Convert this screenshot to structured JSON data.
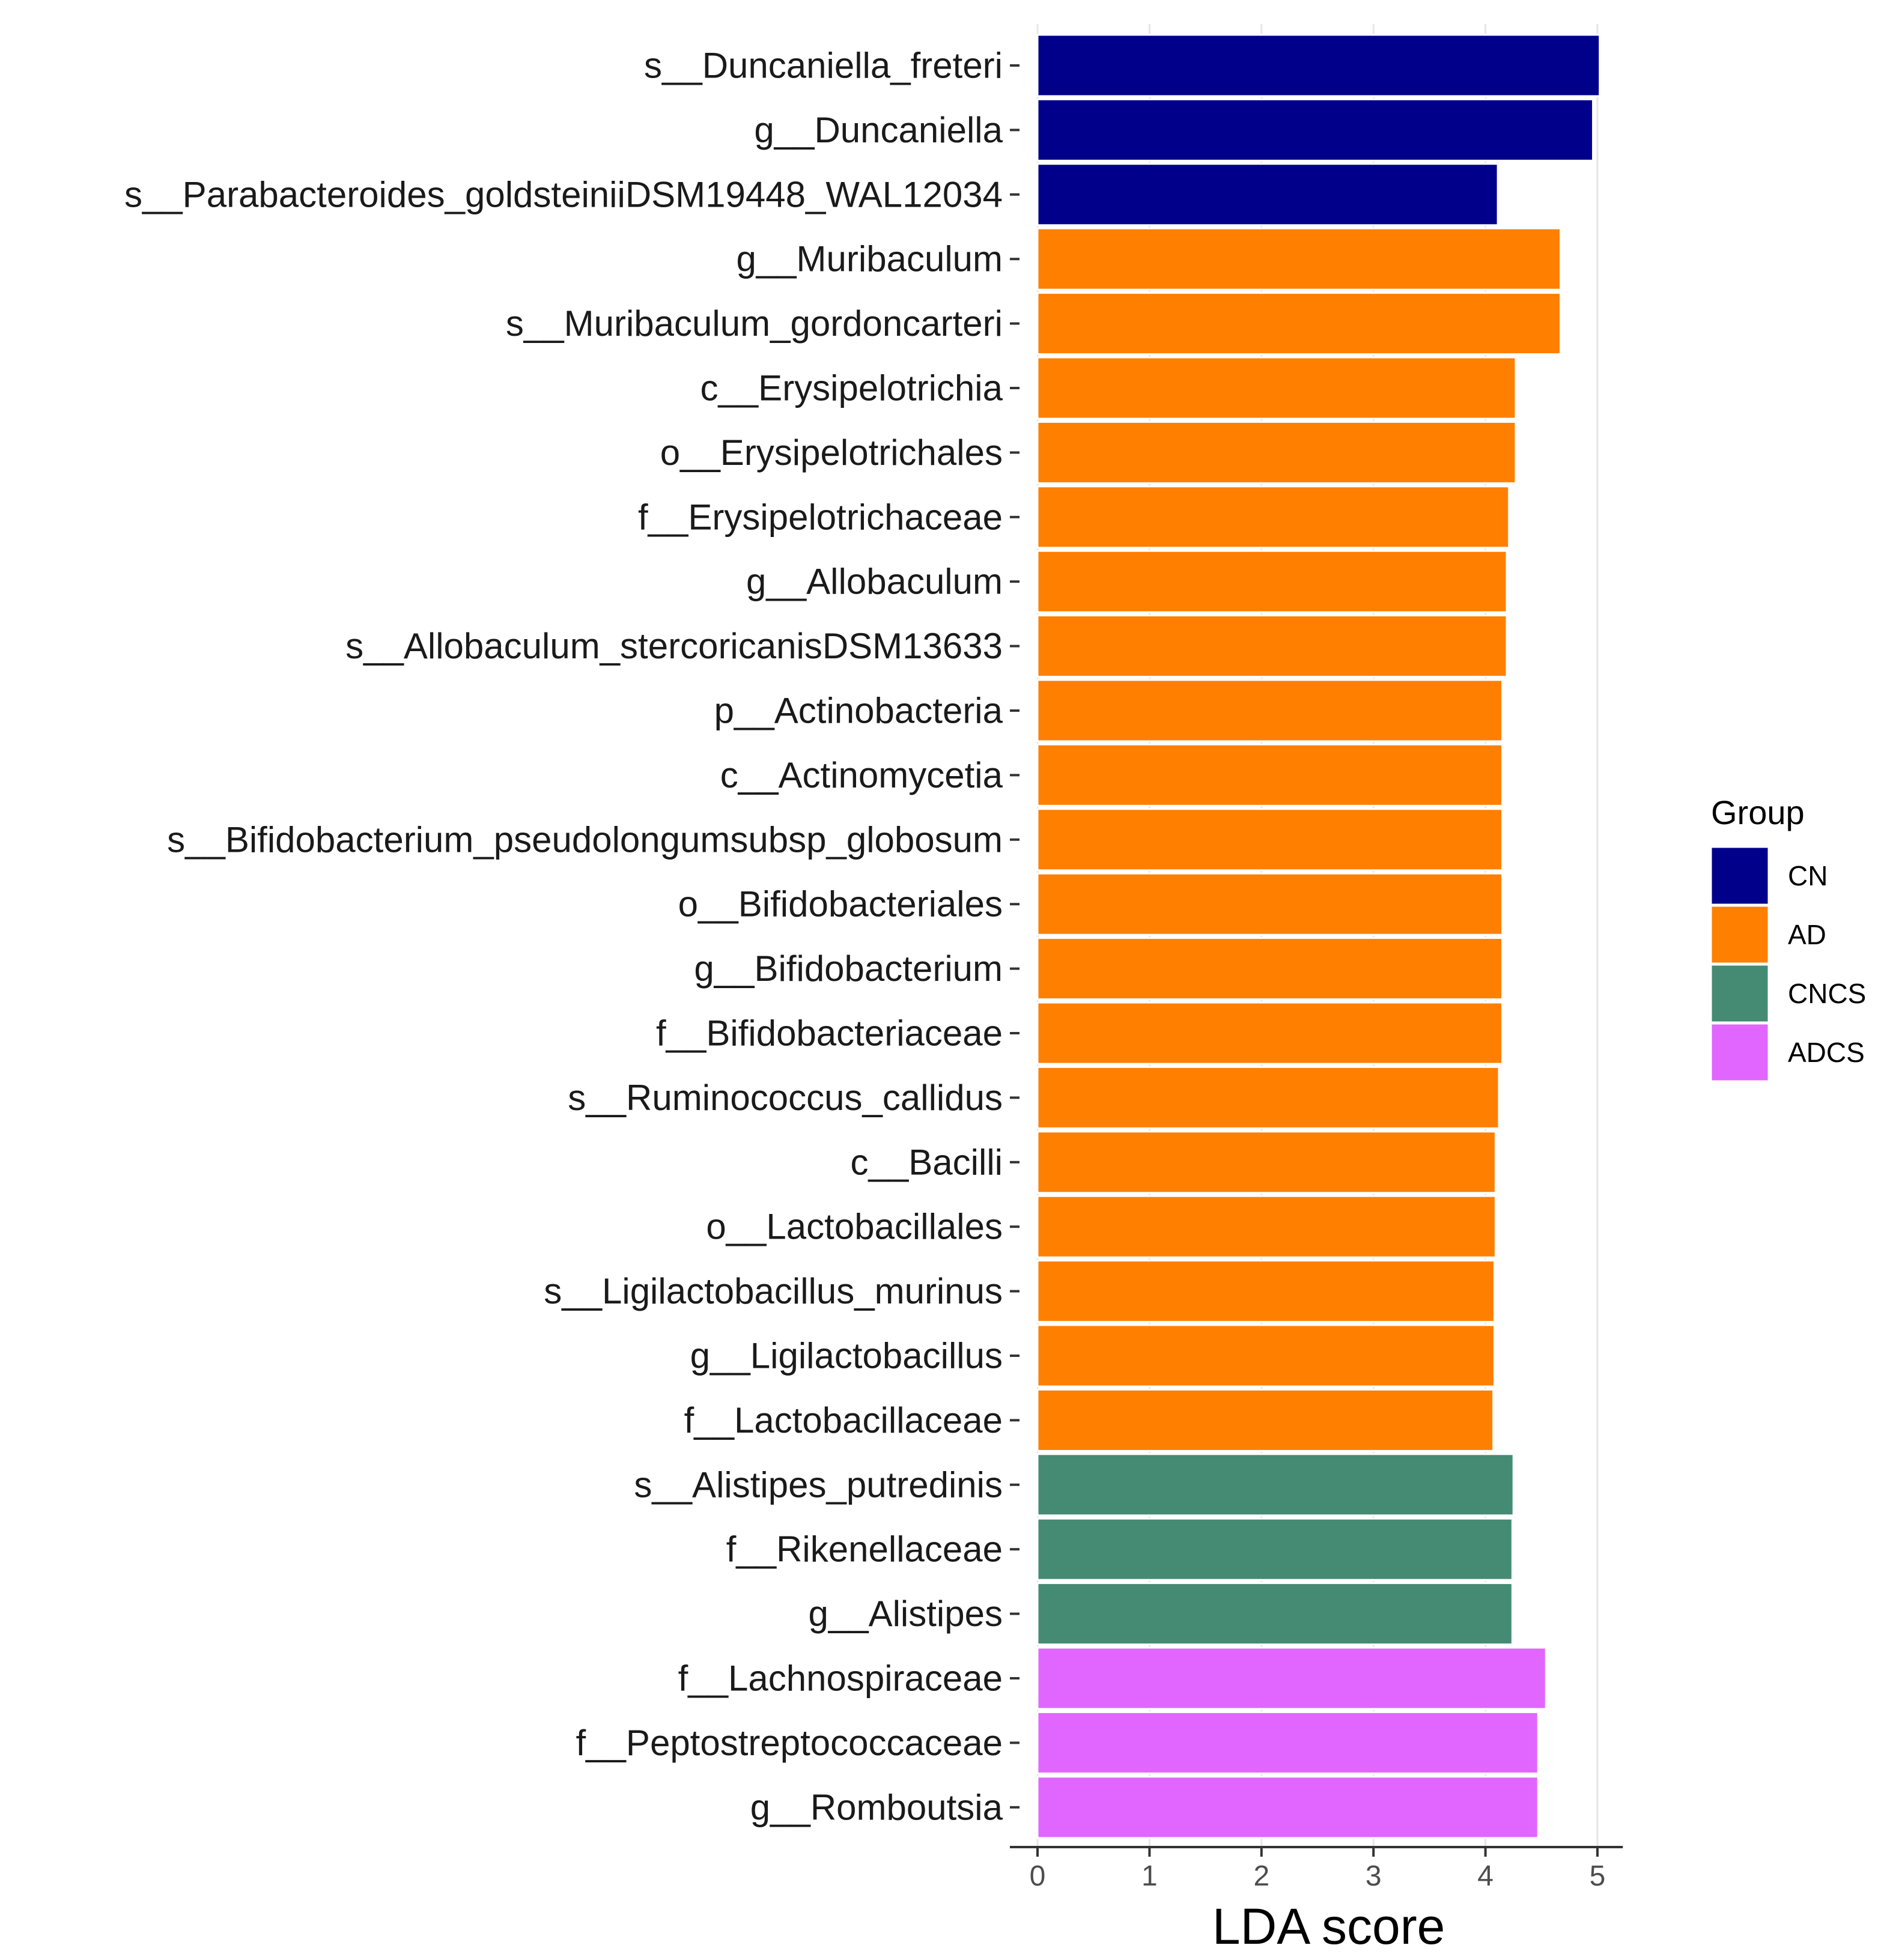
{
  "chart_data": {
    "type": "bar",
    "orientation": "horizontal",
    "title": "",
    "xlabel": "LDA score",
    "ylabel": "",
    "xlim": [
      0,
      5.2
    ],
    "xticks": [
      0,
      1,
      2,
      3,
      4,
      5
    ],
    "grid": "vertical major gridlines",
    "legend": {
      "title": "Group",
      "position": "right",
      "entries": [
        {
          "label": "CN",
          "color": "#00008B"
        },
        {
          "label": "AD",
          "color": "#FF7F00"
        },
        {
          "label": "CNCS",
          "color": "#458B74"
        },
        {
          "label": "ADCS",
          "color": "#E066FF"
        }
      ]
    },
    "categories": [
      "s__Duncaniella_freteri",
      "g__Duncaniella",
      "s__Parabacteroides_goldsteiniiDSM19448_WAL12034",
      "g__Muribaculum",
      "s__Muribaculum_gordoncarteri",
      "c__Erysipelotrichia",
      "o__Erysipelotrichales",
      "f__Erysipelotrichaceae",
      "g__Allobaculum",
      "s__Allobaculum_stercoricanisDSM13633",
      "p__Actinobacteria",
      "c__Actinomycetia",
      "s__Bifidobacterium_pseudolongumsubsp_globosum",
      "o__Bifidobacteriales",
      "g__Bifidobacterium",
      "f__Bifidobacteriaceae",
      "s__Ruminococcus_callidus",
      "c__Bacilli",
      "o__Lactobacillales",
      "s__Ligilactobacillus_murinus",
      "g__Ligilactobacillus",
      "f__Lactobacillaceae",
      "s__Alistipes_putredinis",
      "f__Rikenellaceae",
      "g__Alistipes",
      "f__Lachnospiraceae",
      "f__Peptostreptococcaceae",
      "g__Romboutsia"
    ],
    "values": [
      5.02,
      4.96,
      4.11,
      4.67,
      4.67,
      4.27,
      4.27,
      4.21,
      4.19,
      4.19,
      4.15,
      4.15,
      4.15,
      4.15,
      4.15,
      4.15,
      4.12,
      4.09,
      4.09,
      4.08,
      4.08,
      4.07,
      4.25,
      4.24,
      4.24,
      4.54,
      4.47,
      4.47
    ],
    "groups": [
      "CN",
      "CN",
      "CN",
      "AD",
      "AD",
      "AD",
      "AD",
      "AD",
      "AD",
      "AD",
      "AD",
      "AD",
      "AD",
      "AD",
      "AD",
      "AD",
      "AD",
      "AD",
      "AD",
      "AD",
      "AD",
      "AD",
      "CNCS",
      "CNCS",
      "CNCS",
      "ADCS",
      "ADCS",
      "ADCS"
    ]
  }
}
